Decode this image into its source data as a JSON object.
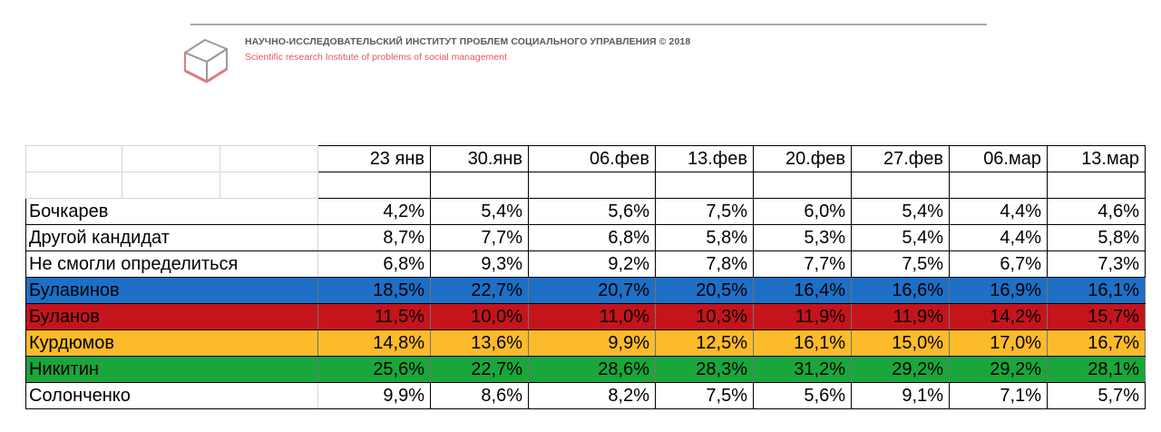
{
  "header": {
    "title_ru": "НАУЧНО-ИССЛЕДОВАТЕЛЬСКИЙ ИНСТИТУТ ПРОБЛЕМ СОЦИАЛЬНОГО УПРАВЛЕНИЯ   © 2018",
    "title_en": "Scientific research Institute of problems of social management",
    "subtitle_color": "#e05a5a"
  },
  "logo": {
    "icon": "cube-icon",
    "accent_color": "#e07b7b"
  },
  "chart_data": {
    "type": "table",
    "columns": [
      "23 янв",
      "30.янв",
      "06.фев",
      "13.фев",
      "20.фев",
      "27.фев",
      "06.мар",
      "13.мар"
    ],
    "rows": [
      {
        "label": "Бочкарев",
        "values": [
          "4,2%",
          "5,4%",
          "5,6%",
          "7,5%",
          "6,0%",
          "5,4%",
          "4,4%",
          "4,6%"
        ],
        "color": "#ffffff"
      },
      {
        "label": "Другой кандидат",
        "values": [
          "8,7%",
          "7,7%",
          "6,8%",
          "5,8%",
          "5,3%",
          "5,4%",
          "4,4%",
          "5,8%"
        ],
        "color": "#ffffff"
      },
      {
        "label": "Не смогли определиться",
        "values": [
          "6,8%",
          "9,3%",
          "9,2%",
          "7,8%",
          "7,7%",
          "7,5%",
          "6,7%",
          "7,3%"
        ],
        "color": "#ffffff"
      },
      {
        "label": "Булавинов",
        "values": [
          "18,5%",
          "22,7%",
          "20,7%",
          "20,5%",
          "16,4%",
          "16,6%",
          "16,9%",
          "16,1%"
        ],
        "color": "#1e6fc6"
      },
      {
        "label": "Буланов",
        "values": [
          "11,5%",
          "10,0%",
          "11,0%",
          "10,3%",
          "11,9%",
          "11,9%",
          "14,2%",
          "15,7%"
        ],
        "color": "#c5141c"
      },
      {
        "label": "Курдюмов",
        "values": [
          "14,8%",
          "13,6%",
          "9,9%",
          "12,5%",
          "16,1%",
          "15,0%",
          "17,0%",
          "16,7%"
        ],
        "color": "#fbbb2b"
      },
      {
        "label": "Никитин",
        "values": [
          "25,6%",
          "22,7%",
          "28,6%",
          "28,3%",
          "31,2%",
          "29,2%",
          "29,2%",
          "28,1%"
        ],
        "color": "#1aa63a"
      },
      {
        "label": "Солонченко",
        "values": [
          "9,9%",
          "8,6%",
          "8,2%",
          "7,5%",
          "5,6%",
          "9,1%",
          "7,1%",
          "5,7%"
        ],
        "color": "#ffffff"
      }
    ]
  }
}
